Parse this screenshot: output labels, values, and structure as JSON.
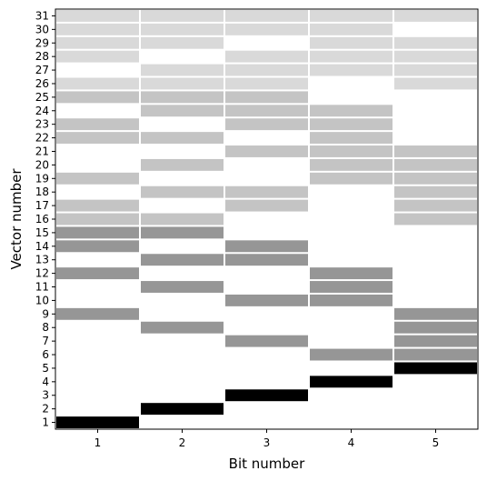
{
  "chart_data": {
    "type": "heatmap",
    "title": "",
    "xlabel": "Bit number",
    "ylabel": "Vector number",
    "x_categories": [
      1,
      2,
      3,
      4,
      5
    ],
    "y_categories": [
      1,
      2,
      3,
      4,
      5,
      6,
      7,
      8,
      9,
      10,
      11,
      12,
      13,
      14,
      15,
      16,
      17,
      18,
      19,
      20,
      21,
      22,
      23,
      24,
      25,
      26,
      27,
      28,
      29,
      30,
      31
    ],
    "grid": false,
    "legend": "none",
    "colors": {
      "level1": "#000000",
      "level2": "#969696",
      "level3": "#c4c4c4",
      "level4": "#d9d9d9",
      "background": "#ffffff"
    },
    "matrix": [
      [
        1,
        0,
        0,
        0,
        0
      ],
      [
        0,
        1,
        0,
        0,
        0
      ],
      [
        0,
        0,
        1,
        0,
        0
      ],
      [
        0,
        0,
        0,
        1,
        0
      ],
      [
        0,
        0,
        0,
        0,
        1
      ],
      [
        0,
        0,
        0,
        2,
        2
      ],
      [
        0,
        0,
        2,
        0,
        2
      ],
      [
        0,
        2,
        0,
        0,
        2
      ],
      [
        2,
        0,
        0,
        0,
        2
      ],
      [
        0,
        0,
        2,
        2,
        0
      ],
      [
        0,
        2,
        0,
        2,
        0
      ],
      [
        2,
        0,
        0,
        2,
        0
      ],
      [
        0,
        2,
        2,
        0,
        0
      ],
      [
        2,
        0,
        2,
        0,
        0
      ],
      [
        2,
        2,
        0,
        0,
        0
      ],
      [
        3,
        3,
        0,
        0,
        3
      ],
      [
        3,
        0,
        3,
        0,
        3
      ],
      [
        0,
        3,
        3,
        0,
        3
      ],
      [
        3,
        0,
        0,
        3,
        3
      ],
      [
        0,
        3,
        0,
        3,
        3
      ],
      [
        0,
        0,
        3,
        3,
        3
      ],
      [
        3,
        3,
        0,
        3,
        0
      ],
      [
        3,
        0,
        3,
        3,
        0
      ],
      [
        0,
        3,
        3,
        3,
        0
      ],
      [
        3,
        3,
        3,
        0,
        0
      ],
      [
        4,
        4,
        4,
        0,
        4
      ],
      [
        0,
        4,
        4,
        4,
        4
      ],
      [
        4,
        0,
        4,
        4,
        4
      ],
      [
        4,
        4,
        0,
        4,
        4
      ],
      [
        4,
        4,
        4,
        4,
        0
      ],
      [
        4,
        4,
        4,
        4,
        4
      ]
    ]
  }
}
